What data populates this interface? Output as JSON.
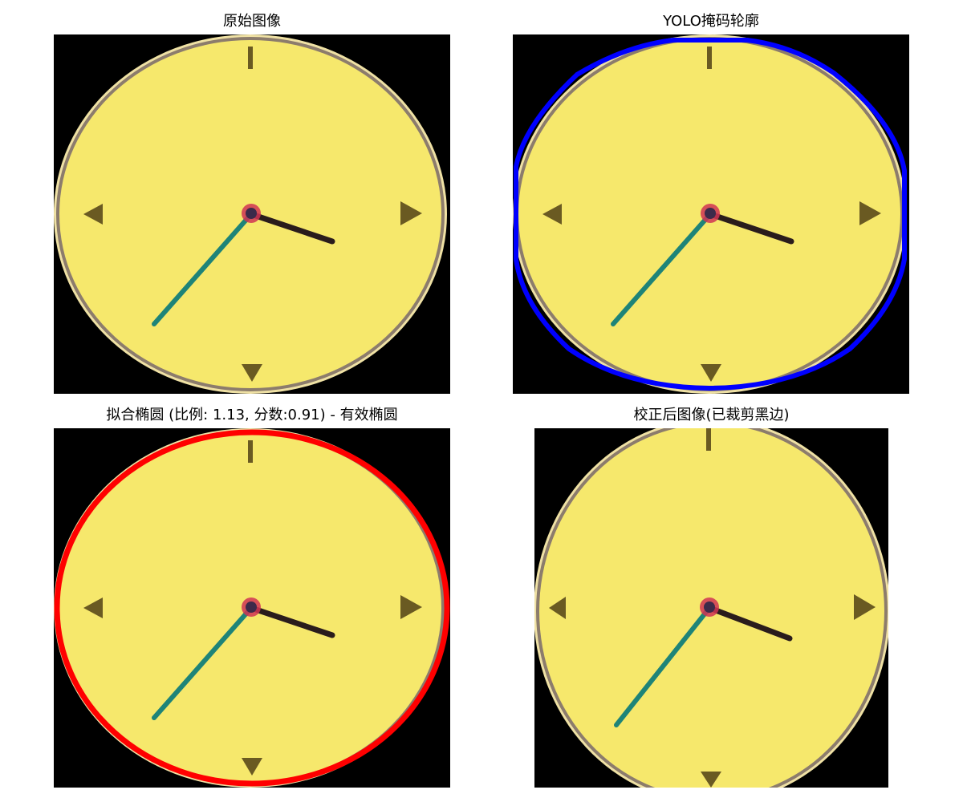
{
  "panels": [
    {
      "title": "原始图像"
    },
    {
      "title": "YOLO掩码轮廓"
    },
    {
      "title": "拟合椭圆 (比例: 1.13, 分数:0.91) - 有效椭圆"
    },
    {
      "title": "校正后图像(已裁剪黑边)"
    }
  ],
  "colors": {
    "background": "#000000",
    "clock_face": "#f6e86c",
    "clock_rim": "#8c7c6c",
    "yolo_contour": "#0000ff",
    "fitted_ellipse": "#ff0000",
    "hour_hand": "#2a1c1c",
    "minute_hand": "#1e8478",
    "center_pin": "#d03454",
    "markers": "#6a5a22"
  }
}
